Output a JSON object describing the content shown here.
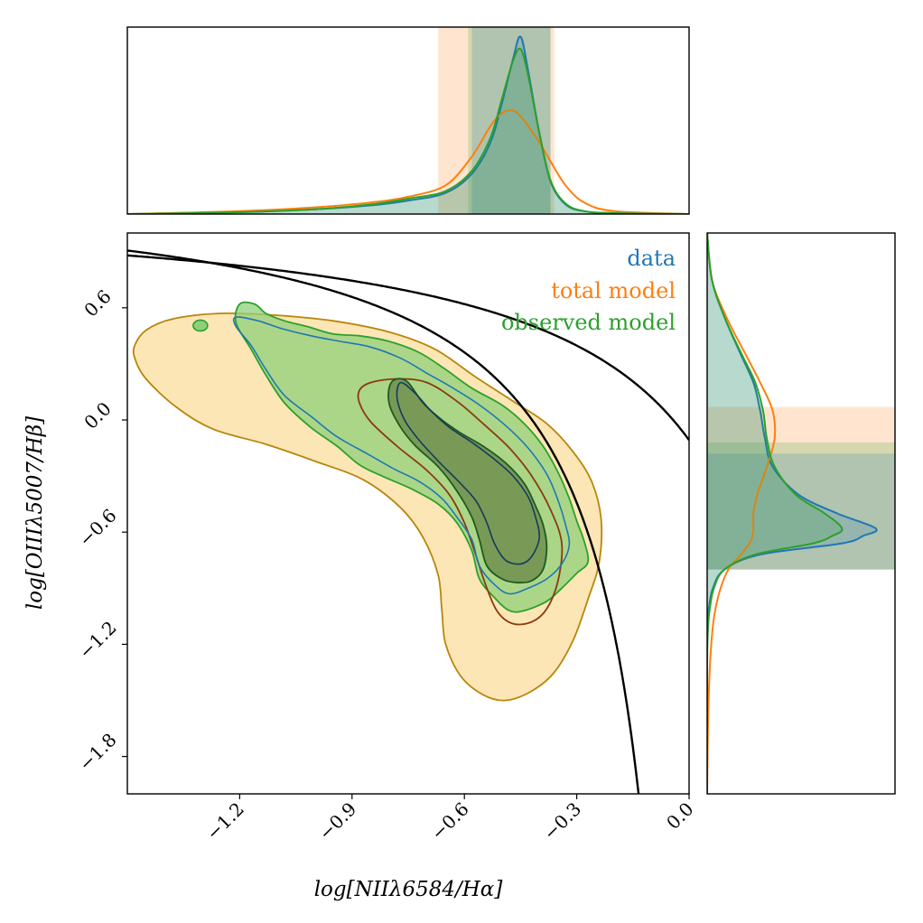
{
  "chart_data": {
    "type": "contour",
    "xlabel": "log[NIIλ6584/Hα]",
    "ylabel": "log[OIIIλ5007/Hβ]",
    "xlim": [
      -1.5,
      0.0
    ],
    "ylim": [
      -2.0,
      1.0
    ],
    "xticks": [
      -1.2,
      -0.9,
      -0.6,
      -0.3,
      0.0
    ],
    "xtick_labels": [
      "−1.2",
      "−0.9",
      "−0.6",
      "−0.3",
      "0.0"
    ],
    "yticks": [
      0.6,
      0.0,
      -0.6,
      -1.2,
      -1.8
    ],
    "ytick_labels": [
      "0.6",
      "0.0",
      "−0.6",
      "−1.2",
      "−1.8"
    ],
    "legend": {
      "placement": "top-right",
      "entries": [
        {
          "label": "data",
          "color": "#1f77b4"
        },
        {
          "label": "total model",
          "color": "#ff7f0e"
        },
        {
          "label": "observed model",
          "color": "#2ca02c"
        }
      ]
    },
    "demarcation_curves": [
      {
        "description": "Kauffmann-type line",
        "formula": "0.61/(x-0.05)+1.3",
        "color": "#000000"
      },
      {
        "description": "Kewley-type line",
        "formula": "0.61/(x-0.47)+1.19",
        "color": "#000000"
      }
    ],
    "contours": [
      {
        "series": "total model",
        "level": "outer",
        "color": "#ff7f0e",
        "fill": "#fde2a8",
        "points": [
          [
            -1.48,
            0.4
          ],
          [
            -1.45,
            0.48
          ],
          [
            -1.38,
            0.54
          ],
          [
            -1.25,
            0.57
          ],
          [
            -1.1,
            0.56
          ],
          [
            -0.95,
            0.53
          ],
          [
            -0.8,
            0.47
          ],
          [
            -0.68,
            0.38
          ],
          [
            -0.57,
            0.23
          ],
          [
            -0.47,
            0.1
          ],
          [
            -0.38,
            -0.02
          ],
          [
            -0.31,
            -0.17
          ],
          [
            -0.26,
            -0.33
          ],
          [
            -0.235,
            -0.53
          ],
          [
            -0.24,
            -0.76
          ],
          [
            -0.27,
            -0.96
          ],
          [
            -0.31,
            -1.18
          ],
          [
            -0.36,
            -1.35
          ],
          [
            -0.42,
            -1.45
          ],
          [
            -0.49,
            -1.5
          ],
          [
            -0.55,
            -1.47
          ],
          [
            -0.61,
            -1.37
          ],
          [
            -0.65,
            -1.2
          ],
          [
            -0.66,
            -1.02
          ],
          [
            -0.67,
            -0.83
          ],
          [
            -0.71,
            -0.63
          ],
          [
            -0.77,
            -0.47
          ],
          [
            -0.87,
            -0.32
          ],
          [
            -1.0,
            -0.22
          ],
          [
            -1.13,
            -0.13
          ],
          [
            -1.27,
            -0.05
          ],
          [
            -1.37,
            0.07
          ],
          [
            -1.45,
            0.22
          ],
          [
            -1.48,
            0.33
          ]
        ]
      },
      {
        "series": "total model",
        "level": "inner",
        "color": "#ff7f0e",
        "fill": "#fde2a8",
        "points": [
          [
            -0.88,
            0.16
          ],
          [
            -0.85,
            0.2
          ],
          [
            -0.78,
            0.22
          ],
          [
            -0.7,
            0.2
          ],
          [
            -0.62,
            0.1
          ],
          [
            -0.55,
            -0.02
          ],
          [
            -0.48,
            -0.15
          ],
          [
            -0.42,
            -0.3
          ],
          [
            -0.37,
            -0.48
          ],
          [
            -0.34,
            -0.66
          ],
          [
            -0.35,
            -0.86
          ],
          [
            -0.38,
            -1.01
          ],
          [
            -0.42,
            -1.08
          ],
          [
            -0.47,
            -1.09
          ],
          [
            -0.51,
            -1.03
          ],
          [
            -0.54,
            -0.9
          ],
          [
            -0.57,
            -0.72
          ],
          [
            -0.6,
            -0.55
          ],
          [
            -0.64,
            -0.4
          ],
          [
            -0.7,
            -0.27
          ],
          [
            -0.78,
            -0.14
          ],
          [
            -0.85,
            -0.01
          ],
          [
            -0.88,
            0.09
          ]
        ]
      },
      {
        "series": "observed model",
        "level": "outer",
        "color": "#2ca02c",
        "fill": "#8fd07a",
        "points": [
          [
            -1.2,
            0.62
          ],
          [
            -1.16,
            0.62
          ],
          [
            -1.13,
            0.57
          ],
          [
            -1.08,
            0.53
          ],
          [
            -1.02,
            0.5
          ],
          [
            -0.95,
            0.46
          ],
          [
            -0.88,
            0.45
          ],
          [
            -0.8,
            0.42
          ],
          [
            -0.72,
            0.36
          ],
          [
            -0.65,
            0.27
          ],
          [
            -0.58,
            0.17
          ],
          [
            -0.5,
            0.08
          ],
          [
            -0.44,
            -0.02
          ],
          [
            -0.39,
            -0.14
          ],
          [
            -0.35,
            -0.28
          ],
          [
            -0.32,
            -0.42
          ],
          [
            -0.3,
            -0.54
          ],
          [
            -0.28,
            -0.65
          ],
          [
            -0.27,
            -0.76
          ],
          [
            -0.3,
            -0.82
          ],
          [
            -0.34,
            -0.9
          ],
          [
            -0.38,
            -0.97
          ],
          [
            -0.44,
            -1.02
          ],
          [
            -0.48,
            -1.02
          ],
          [
            -0.52,
            -0.95
          ],
          [
            -0.56,
            -0.85
          ],
          [
            -0.58,
            -0.7
          ],
          [
            -0.62,
            -0.55
          ],
          [
            -0.67,
            -0.45
          ],
          [
            -0.74,
            -0.37
          ],
          [
            -0.82,
            -0.3
          ],
          [
            -0.88,
            -0.24
          ],
          [
            -0.94,
            -0.14
          ],
          [
            -1.01,
            -0.04
          ],
          [
            -1.08,
            0.09
          ],
          [
            -1.13,
            0.24
          ],
          [
            -1.17,
            0.38
          ],
          [
            -1.21,
            0.52
          ]
        ]
      },
      {
        "series": "observed model",
        "level": "inner",
        "color": "#2ca02c",
        "fill": "#6f8f4e",
        "points": [
          [
            -0.78,
            0.22
          ],
          [
            -0.75,
            0.2
          ],
          [
            -0.71,
            0.09
          ],
          [
            -0.66,
            0.0
          ],
          [
            -0.61,
            -0.07
          ],
          [
            -0.55,
            -0.14
          ],
          [
            -0.49,
            -0.23
          ],
          [
            -0.44,
            -0.34
          ],
          [
            -0.41,
            -0.46
          ],
          [
            -0.39,
            -0.56
          ],
          [
            -0.38,
            -0.68
          ],
          [
            -0.39,
            -0.8
          ],
          [
            -0.42,
            -0.86
          ],
          [
            -0.46,
            -0.87
          ],
          [
            -0.5,
            -0.85
          ],
          [
            -0.54,
            -0.78
          ],
          [
            -0.56,
            -0.64
          ],
          [
            -0.58,
            -0.52
          ],
          [
            -0.62,
            -0.38
          ],
          [
            -0.67,
            -0.25
          ],
          [
            -0.73,
            -0.14
          ],
          [
            -0.77,
            -0.04
          ],
          [
            -0.8,
            0.08
          ],
          [
            -0.8,
            0.18
          ]
        ]
      },
      {
        "series": "data",
        "level": "outer",
        "color": "#1f77b4",
        "points": [
          [
            -1.21,
            0.55
          ],
          [
            -1.15,
            0.53
          ],
          [
            -1.09,
            0.49
          ],
          [
            -1.01,
            0.45
          ],
          [
            -0.93,
            0.42
          ],
          [
            -0.85,
            0.39
          ],
          [
            -0.77,
            0.33
          ],
          [
            -0.7,
            0.25
          ],
          [
            -0.63,
            0.17
          ],
          [
            -0.56,
            0.08
          ],
          [
            -0.49,
            -0.03
          ],
          [
            -0.43,
            -0.15
          ],
          [
            -0.38,
            -0.29
          ],
          [
            -0.35,
            -0.43
          ],
          [
            -0.33,
            -0.56
          ],
          [
            -0.32,
            -0.67
          ],
          [
            -0.34,
            -0.77
          ],
          [
            -0.38,
            -0.85
          ],
          [
            -0.43,
            -0.9
          ],
          [
            -0.48,
            -0.93
          ],
          [
            -0.52,
            -0.88
          ],
          [
            -0.56,
            -0.78
          ],
          [
            -0.58,
            -0.64
          ],
          [
            -0.62,
            -0.52
          ],
          [
            -0.66,
            -0.42
          ],
          [
            -0.72,
            -0.33
          ],
          [
            -0.79,
            -0.26
          ],
          [
            -0.86,
            -0.18
          ],
          [
            -0.94,
            -0.09
          ],
          [
            -1.01,
            0.02
          ],
          [
            -1.08,
            0.13
          ],
          [
            -1.13,
            0.27
          ],
          [
            -1.17,
            0.4
          ],
          [
            -1.21,
            0.5
          ]
        ]
      },
      {
        "series": "data",
        "level": "inner",
        "color": "#1f77b4",
        "points": [
          [
            -0.77,
            0.2
          ],
          [
            -0.73,
            0.14
          ],
          [
            -0.69,
            0.05
          ],
          [
            -0.64,
            -0.04
          ],
          [
            -0.58,
            -0.12
          ],
          [
            -0.52,
            -0.21
          ],
          [
            -0.47,
            -0.3
          ],
          [
            -0.43,
            -0.41
          ],
          [
            -0.41,
            -0.52
          ],
          [
            -0.4,
            -0.63
          ],
          [
            -0.42,
            -0.73
          ],
          [
            -0.45,
            -0.77
          ],
          [
            -0.49,
            -0.75
          ],
          [
            -0.52,
            -0.66
          ],
          [
            -0.54,
            -0.55
          ],
          [
            -0.57,
            -0.43
          ],
          [
            -0.62,
            -0.32
          ],
          [
            -0.67,
            -0.22
          ],
          [
            -0.72,
            -0.11
          ],
          [
            -0.76,
            0.0
          ],
          [
            -0.78,
            0.12
          ]
        ]
      }
    ],
    "top_marginal": {
      "x_range": [
        -1.5,
        0.0
      ],
      "series": [
        {
          "name": "data",
          "color": "#1f77b4",
          "x": [
            -1.5,
            -1.2,
            -1.0,
            -0.85,
            -0.75,
            -0.65,
            -0.58,
            -0.53,
            -0.5,
            -0.47,
            -0.45,
            -0.43,
            -0.4,
            -0.37,
            -0.33,
            -0.28,
            -0.2,
            0.0
          ],
          "density": [
            0.0,
            0.02,
            0.05,
            0.09,
            0.14,
            0.22,
            0.42,
            0.75,
            1.15,
            1.62,
            1.85,
            1.5,
            0.85,
            0.34,
            0.1,
            0.03,
            0.01,
            0.0
          ]
        },
        {
          "name": "total model",
          "color": "#ff7f0e",
          "x": [
            -1.5,
            -1.2,
            -1.0,
            -0.85,
            -0.75,
            -0.65,
            -0.58,
            -0.53,
            -0.5,
            -0.47,
            -0.45,
            -0.43,
            -0.4,
            -0.37,
            -0.33,
            -0.28,
            -0.2,
            0.0
          ],
          "density": [
            0.0,
            0.03,
            0.07,
            0.12,
            0.18,
            0.3,
            0.6,
            0.92,
            1.05,
            1.08,
            1.02,
            0.92,
            0.75,
            0.55,
            0.3,
            0.12,
            0.03,
            0.0
          ]
        },
        {
          "name": "observed model",
          "color": "#2ca02c",
          "x": [
            -1.5,
            -1.2,
            -1.0,
            -0.85,
            -0.75,
            -0.65,
            -0.58,
            -0.53,
            -0.5,
            -0.47,
            -0.45,
            -0.43,
            -0.4,
            -0.37,
            -0.33,
            -0.28,
            -0.2,
            0.0
          ],
          "density": [
            0.0,
            0.02,
            0.05,
            0.1,
            0.16,
            0.24,
            0.45,
            0.8,
            1.2,
            1.6,
            1.72,
            1.45,
            0.85,
            0.35,
            0.11,
            0.03,
            0.01,
            0.0
          ]
        }
      ],
      "bands": [
        {
          "series": "total model",
          "color": "#ff7f0e",
          "range": [
            -0.67,
            -0.36
          ]
        },
        {
          "series": "observed model",
          "color": "#2ca02c",
          "range": [
            -0.59,
            -0.37
          ]
        },
        {
          "series": "data",
          "color": "#1f77b4",
          "range": [
            -0.58,
            -0.37
          ]
        }
      ]
    },
    "right_marginal": {
      "y_range": [
        -2.0,
        1.0
      ],
      "series": [
        {
          "name": "data",
          "color": "#1f77b4",
          "y": [
            1.0,
            0.75,
            0.55,
            0.35,
            0.2,
            0.05,
            -0.1,
            -0.25,
            -0.4,
            -0.5,
            -0.58,
            -0.62,
            -0.66,
            -0.72,
            -0.8,
            -0.9,
            -1.0,
            -1.1,
            -1.3,
            -1.6,
            -2.0
          ],
          "density": [
            0.0,
            0.05,
            0.18,
            0.35,
            0.48,
            0.55,
            0.6,
            0.68,
            0.95,
            1.35,
            1.75,
            1.62,
            1.4,
            0.55,
            0.18,
            0.06,
            0.02,
            0.0,
            0.0,
            0.0,
            0.0
          ]
        },
        {
          "name": "total model",
          "color": "#ff7f0e",
          "y": [
            1.0,
            0.75,
            0.55,
            0.35,
            0.2,
            0.05,
            -0.1,
            -0.25,
            -0.4,
            -0.5,
            -0.58,
            -0.62,
            -0.66,
            -0.72,
            -0.8,
            -0.9,
            -1.0,
            -1.1,
            -1.3,
            -1.6,
            -2.0
          ],
          "density": [
            0.0,
            0.05,
            0.2,
            0.4,
            0.55,
            0.68,
            0.7,
            0.62,
            0.52,
            0.48,
            0.48,
            0.47,
            0.44,
            0.35,
            0.22,
            0.14,
            0.09,
            0.06,
            0.03,
            0.01,
            0.0
          ]
        },
        {
          "name": "observed model",
          "color": "#2ca02c",
          "y": [
            1.0,
            0.75,
            0.55,
            0.35,
            0.2,
            0.05,
            -0.1,
            -0.25,
            -0.4,
            -0.5,
            -0.58,
            -0.62,
            -0.66,
            -0.72,
            -0.8,
            -0.9,
            -1.0,
            -1.1,
            -1.3,
            -1.6,
            -2.0
          ],
          "density": [
            0.0,
            0.05,
            0.18,
            0.36,
            0.5,
            0.58,
            0.62,
            0.7,
            0.92,
            1.22,
            1.4,
            1.3,
            1.1,
            0.5,
            0.18,
            0.07,
            0.03,
            0.01,
            0.0,
            0.0,
            0.0
          ]
        }
      ],
      "bands": [
        {
          "series": "total model",
          "color": "#ff7f0e",
          "range": [
            -0.8,
            0.07
          ]
        },
        {
          "series": "observed model",
          "color": "#2ca02c",
          "range": [
            -0.8,
            -0.12
          ]
        },
        {
          "series": "data",
          "color": "#1f77b4",
          "range": [
            -0.8,
            -0.18
          ]
        }
      ]
    }
  }
}
